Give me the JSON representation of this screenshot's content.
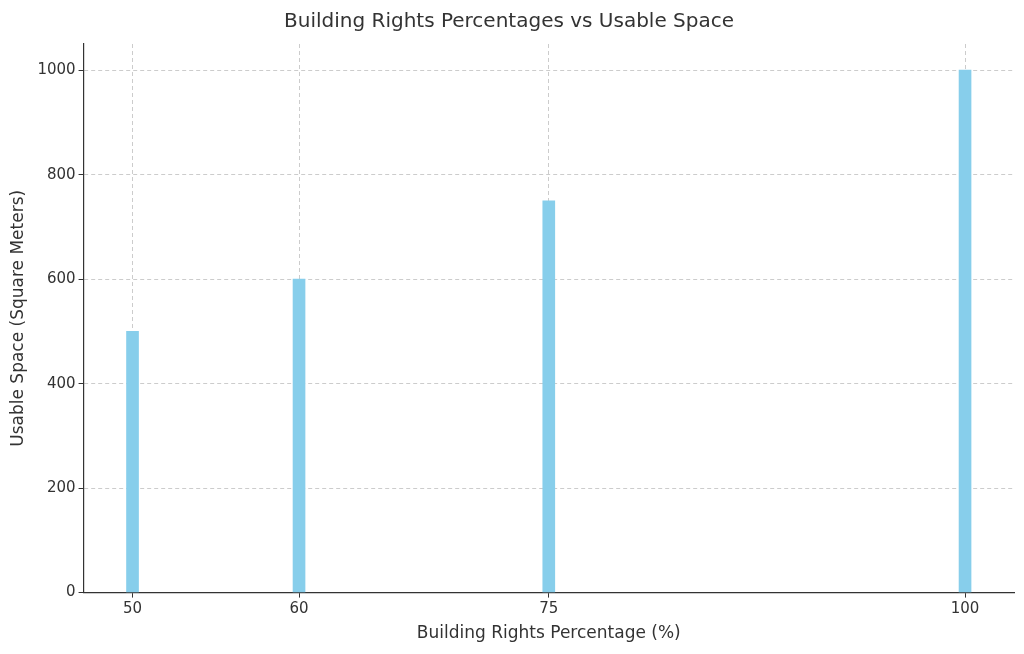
{
  "chart_data": {
    "type": "bar",
    "title": "Building Rights Percentages vs Usable Space",
    "x_label": "Building Rights Percentage (%)",
    "y_label": "Usable Space (Square Meters)",
    "x": [
      50,
      60,
      75,
      100
    ],
    "values": [
      500,
      600,
      750,
      1000
    ],
    "color": "#87ceeb",
    "xlim": [
      47.06,
      102.94
    ],
    "xticks": [
      50,
      60,
      75,
      100
    ],
    "ylim": [
      0,
      1050
    ],
    "yticks": [
      0,
      200,
      400,
      600,
      800,
      1000
    ],
    "grid": true
  }
}
